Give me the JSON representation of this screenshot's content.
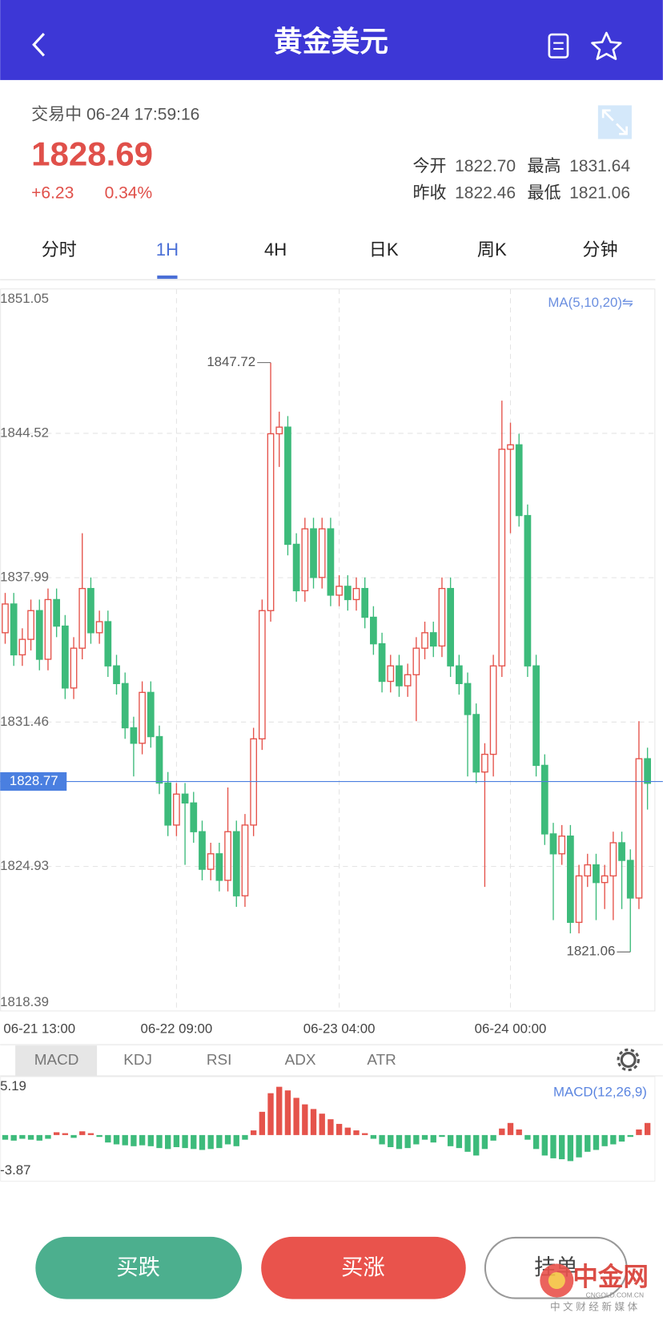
{
  "header": {
    "title": "黄金美元"
  },
  "quote": {
    "status": "交易中 06-24 17:59:16",
    "price": "1828.69",
    "change": "+6.23",
    "change_pct": "0.34%",
    "stats": [
      {
        "label": "今开",
        "value": "1822.70"
      },
      {
        "label": "最高",
        "value": "1831.64"
      },
      {
        "label": "昨收",
        "value": "1822.46"
      },
      {
        "label": "最低",
        "value": "1821.06"
      }
    ]
  },
  "tabs": {
    "items": [
      "分时",
      "1H",
      "4H",
      "日K",
      "周K",
      "分钟"
    ],
    "active": 1
  },
  "chart": {
    "type": "candlestick",
    "ylim": [
      1818.39,
      1851.05
    ],
    "yticks": [
      1851.05,
      1844.52,
      1837.99,
      1831.46,
      1824.93,
      1818.39
    ],
    "ma_label": "MA(5,10,20)⇋",
    "last_price": 1828.77,
    "up_color": "#e5534b",
    "down_color": "#3dbb7b",
    "x_labels": [
      {
        "index": 4,
        "label": "06-21 13:00"
      },
      {
        "index": 20,
        "label": "06-22 09:00"
      },
      {
        "index": 39,
        "label": "06-23 04:00"
      },
      {
        "index": 59,
        "label": "06-24 00:00"
      }
    ],
    "candles": [
      [
        1835.5,
        1837.3,
        1835.0,
        1836.8
      ],
      [
        1836.8,
        1837.3,
        1834.0,
        1834.5
      ],
      [
        1834.5,
        1835.7,
        1834.0,
        1835.2
      ],
      [
        1835.2,
        1837.0,
        1834.7,
        1836.5
      ],
      [
        1836.5,
        1837.0,
        1833.8,
        1834.3
      ],
      [
        1834.3,
        1837.5,
        1833.8,
        1837.0
      ],
      [
        1837.0,
        1837.5,
        1835.3,
        1835.8
      ],
      [
        1835.8,
        1836.3,
        1832.5,
        1833.0
      ],
      [
        1833.0,
        1835.3,
        1832.5,
        1834.8
      ],
      [
        1834.8,
        1840.0,
        1834.3,
        1837.5
      ],
      [
        1837.5,
        1838.0,
        1835.0,
        1835.5
      ],
      [
        1835.5,
        1836.5,
        1835.0,
        1836.0
      ],
      [
        1836.0,
        1836.5,
        1833.5,
        1834.0
      ],
      [
        1834.0,
        1834.5,
        1832.7,
        1833.2
      ],
      [
        1833.2,
        1833.7,
        1830.7,
        1831.2
      ],
      [
        1831.2,
        1831.7,
        1829.0,
        1830.5
      ],
      [
        1830.5,
        1833.3,
        1830.0,
        1832.8
      ],
      [
        1832.8,
        1833.3,
        1830.3,
        1830.8
      ],
      [
        1830.8,
        1831.3,
        1828.2,
        1828.7
      ],
      [
        1828.7,
        1829.2,
        1826.3,
        1826.8
      ],
      [
        1826.8,
        1828.7,
        1826.3,
        1828.2
      ],
      [
        1828.2,
        1828.7,
        1825.0,
        1827.8
      ],
      [
        1827.8,
        1828.3,
        1826.0,
        1826.5
      ],
      [
        1826.5,
        1827.0,
        1824.3,
        1824.8
      ],
      [
        1824.8,
        1826.0,
        1824.3,
        1825.5
      ],
      [
        1825.5,
        1826.0,
        1823.8,
        1824.3
      ],
      [
        1824.3,
        1828.5,
        1823.8,
        1826.5
      ],
      [
        1826.5,
        1827.0,
        1823.1,
        1823.6
      ],
      [
        1823.6,
        1827.3,
        1823.1,
        1826.8
      ],
      [
        1826.8,
        1831.2,
        1826.3,
        1830.7
      ],
      [
        1830.7,
        1837.0,
        1830.2,
        1836.5
      ],
      [
        1836.5,
        1847.72,
        1836.0,
        1844.5
      ],
      [
        1844.5,
        1845.5,
        1843.0,
        1844.8
      ],
      [
        1844.8,
        1845.3,
        1839.0,
        1839.5
      ],
      [
        1839.5,
        1840.0,
        1836.9,
        1837.4
      ],
      [
        1837.4,
        1840.7,
        1836.9,
        1840.2
      ],
      [
        1840.2,
        1840.7,
        1837.5,
        1838.0
      ],
      [
        1838.0,
        1840.7,
        1837.5,
        1840.2
      ],
      [
        1840.2,
        1840.7,
        1836.7,
        1837.2
      ],
      [
        1837.2,
        1838.1,
        1836.7,
        1837.6
      ],
      [
        1837.6,
        1838.1,
        1836.5,
        1837.0
      ],
      [
        1837.0,
        1838.0,
        1836.5,
        1837.5
      ],
      [
        1837.5,
        1838.0,
        1835.7,
        1836.2
      ],
      [
        1836.2,
        1836.7,
        1834.5,
        1835.0
      ],
      [
        1835.0,
        1835.5,
        1832.8,
        1833.3
      ],
      [
        1833.3,
        1834.5,
        1832.8,
        1834.0
      ],
      [
        1834.0,
        1834.5,
        1832.6,
        1833.1
      ],
      [
        1833.1,
        1834.1,
        1832.6,
        1833.6
      ],
      [
        1833.6,
        1835.3,
        1831.5,
        1834.8
      ],
      [
        1834.8,
        1836.0,
        1834.3,
        1835.5
      ],
      [
        1835.5,
        1836.0,
        1834.4,
        1834.9
      ],
      [
        1834.9,
        1838.0,
        1834.4,
        1837.5
      ],
      [
        1837.5,
        1838.0,
        1833.5,
        1834.0
      ],
      [
        1834.0,
        1834.5,
        1832.7,
        1833.2
      ],
      [
        1833.2,
        1833.7,
        1829.0,
        1831.8
      ],
      [
        1831.8,
        1832.3,
        1828.7,
        1829.2
      ],
      [
        1829.2,
        1830.5,
        1824.0,
        1830.0
      ],
      [
        1830.0,
        1834.5,
        1829.0,
        1834.0
      ],
      [
        1834.0,
        1846.0,
        1833.5,
        1843.8
      ],
      [
        1843.8,
        1845.0,
        1840.0,
        1844.0
      ],
      [
        1844.0,
        1844.5,
        1840.3,
        1840.8
      ],
      [
        1840.8,
        1841.3,
        1833.5,
        1834.0
      ],
      [
        1834.0,
        1834.5,
        1829.0,
        1829.5
      ],
      [
        1829.5,
        1830.0,
        1825.9,
        1826.4
      ],
      [
        1826.4,
        1826.9,
        1822.5,
        1825.5
      ],
      [
        1825.5,
        1826.8,
        1825.0,
        1826.3
      ],
      [
        1826.3,
        1826.8,
        1821.9,
        1822.4
      ],
      [
        1822.4,
        1825.0,
        1821.9,
        1824.5
      ],
      [
        1824.5,
        1825.5,
        1824.0,
        1825.0
      ],
      [
        1825.0,
        1825.5,
        1822.5,
        1824.2
      ],
      [
        1824.2,
        1825.0,
        1823.0,
        1824.5
      ],
      [
        1824.5,
        1826.5,
        1822.5,
        1826.0
      ],
      [
        1826.0,
        1826.5,
        1823.0,
        1825.2
      ],
      [
        1825.2,
        1825.7,
        1821.06,
        1823.5
      ],
      [
        1823.5,
        1831.5,
        1823.0,
        1829.8
      ],
      [
        1829.8,
        1830.3,
        1827.5,
        1828.69
      ]
    ]
  },
  "indicator_tabs": {
    "items": [
      "MACD",
      "KDJ",
      "RSI",
      "ADX",
      "ATR"
    ],
    "active": 0
  },
  "macd": {
    "label": "MACD(12,26,9)",
    "ylim": [
      -3.87,
      5.19
    ],
    "yticks": [
      5.19,
      -3.87
    ],
    "up_color": "#e5534b",
    "down_color": "#3dbb7b",
    "values": [
      -0.5,
      -0.6,
      -0.4,
      -0.5,
      -0.6,
      -0.4,
      0.3,
      0.2,
      -0.3,
      0.4,
      0.2,
      -0.2,
      -0.8,
      -1.0,
      -1.1,
      -1.2,
      -1.1,
      -1.2,
      -1.4,
      -1.5,
      -1.3,
      -1.4,
      -1.5,
      -1.6,
      -1.5,
      -1.4,
      -1.0,
      -1.2,
      -0.5,
      0.5,
      2.5,
      4.5,
      5.19,
      4.8,
      4.0,
      3.3,
      2.8,
      2.3,
      1.7,
      1.2,
      0.8,
      0.5,
      0.2,
      -0.4,
      -1.0,
      -1.3,
      -1.5,
      -1.4,
      -1.0,
      -0.5,
      -0.8,
      -0.2,
      -1.2,
      -1.4,
      -1.8,
      -2.2,
      -1.5,
      -0.6,
      0.7,
      1.3,
      0.6,
      -0.5,
      -1.5,
      -2.2,
      -2.5,
      -2.6,
      -2.8,
      -2.4,
      -1.8,
      -1.6,
      -1.2,
      -1.0,
      -0.7,
      -0.2,
      0.6,
      1.3
    ]
  },
  "buttons": [
    "买跌",
    "买涨",
    "挂单"
  ],
  "watermark": {
    "name": "中金网",
    "domain": "CNGOLD.COM.CN",
    "slogan": "中 文 财 经 新 媒 体"
  }
}
